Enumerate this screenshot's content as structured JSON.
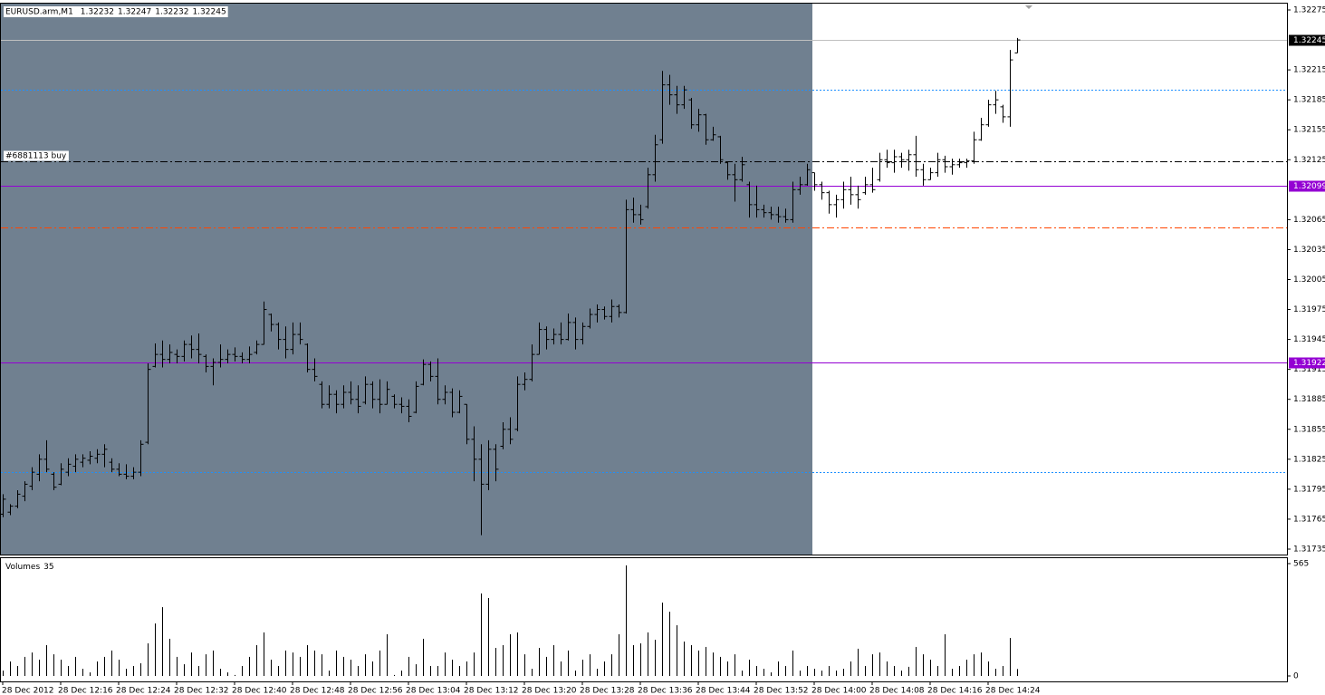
{
  "chart_data": [
    {
      "type": "ohlc",
      "title": "EURUSD.arm,M1",
      "categories": [
        "28 Dec 2012",
        null,
        null,
        null,
        null,
        null,
        null,
        null,
        "28 Dec 12:16",
        null,
        null,
        null,
        null,
        null,
        null,
        null,
        "28 Dec 12:24",
        null,
        null,
        null,
        null,
        null,
        null,
        null,
        "28 Dec 12:32",
        null,
        null,
        null,
        null,
        null,
        null,
        null,
        "28 Dec 12:40",
        null,
        null,
        null,
        null,
        null,
        null,
        null,
        "28 Dec 12:48",
        null,
        null,
        null,
        null,
        null,
        null,
        null,
        "28 Dec 12:56",
        null,
        null,
        null,
        null,
        null,
        null,
        null,
        "28 Dec 13:04",
        null,
        null,
        null,
        null,
        null,
        null,
        null,
        "28 Dec 13:12",
        null,
        null,
        null,
        null,
        null,
        null,
        null,
        "28 Dec 13:20",
        null,
        null,
        null,
        null,
        null,
        null,
        null,
        "28 Dec 13:28",
        null,
        null,
        null,
        null,
        null,
        null,
        null,
        "28 Dec 13:36",
        null,
        null,
        null,
        null,
        null,
        null,
        null,
        "28 Dec 13:44",
        null,
        null,
        null,
        null,
        null,
        null,
        null,
        "28 Dec 13:52",
        null,
        null,
        null,
        null,
        null,
        null,
        null,
        "28 Dec 14:00",
        null,
        null,
        null,
        null,
        null,
        null,
        null,
        "28 Dec 14:08",
        null,
        null,
        null,
        null,
        null,
        null,
        null,
        "28 Dec 14:16",
        null,
        null,
        null,
        null,
        null,
        null,
        null,
        "28 Dec 14:24",
        null,
        null,
        null,
        null
      ],
      "open": [
        1.3177,
        1.31772,
        1.31778,
        1.31788,
        1.31798,
        1.3181,
        1.31825,
        1.3181,
        1.318,
        1.31812,
        1.31818,
        1.31822,
        1.31824,
        1.31826,
        1.3183,
        1.31822,
        1.31815,
        1.3181,
        1.31808,
        1.31812,
        1.31842,
        1.31918,
        1.3193,
        1.31925,
        1.3193,
        1.31928,
        1.3194,
        1.31935,
        1.31928,
        1.31918,
        1.31922,
        1.31925,
        1.3193,
        1.31928,
        1.31925,
        1.31932,
        1.3194,
        1.3197,
        1.3196,
        1.31945,
        1.31935,
        1.3195,
        1.3194,
        1.31915,
        1.319,
        1.3188,
        1.3189,
        1.3188,
        1.31892,
        1.31885,
        1.31882,
        1.319,
        1.31885,
        1.3188,
        1.31888,
        1.3188,
        1.31878,
        1.31872,
        1.319,
        1.3192,
        1.31908,
        1.31885,
        1.31892,
        1.31872,
        1.3188,
        1.31845,
        1.31825,
        1.318,
        1.31835,
        1.31838,
        1.31855,
        1.31855,
        1.319,
        1.31905,
        1.3193,
        1.31955,
        1.31945,
        1.3195,
        1.31945,
        1.31962,
        1.31945,
        1.31958,
        1.3197,
        1.31975,
        1.31968,
        1.31978,
        1.31972,
        1.32075,
        1.3207,
        1.32078,
        1.3211,
        1.32145,
        1.322,
        1.3219,
        1.3218,
        1.32185,
        1.3216,
        1.3217,
        1.32145,
        1.32148,
        1.32122,
        1.3211,
        1.32105,
        1.321,
        1.3208,
        1.32075,
        1.32072,
        1.3207,
        1.32068,
        1.32065,
        1.32095,
        1.321,
        1.32112,
        1.321,
        1.32092,
        1.3208,
        1.32085,
        1.32095,
        1.3209,
        1.32092,
        1.321,
        1.32105,
        1.32125,
        1.32122,
        1.32128,
        1.32125,
        1.3213,
        1.32115,
        1.32105,
        1.32112,
        1.32125,
        1.32118,
        1.3212,
        1.32122,
        1.32124,
        1.32145,
        1.3216,
        1.3218,
        1.32178,
        1.32168,
        1.32232
      ],
      "high": [
        1.3179,
        1.3178,
        1.31794,
        1.31803,
        1.31817,
        1.3183,
        1.31844,
        1.31812,
        1.31821,
        1.31826,
        1.3183,
        1.3183,
        1.31833,
        1.31835,
        1.3184,
        1.31826,
        1.31821,
        1.3182,
        1.31817,
        1.31844,
        1.31921,
        1.31941,
        1.31944,
        1.3194,
        1.31935,
        1.31944,
        1.31949,
        1.31951,
        1.3193,
        1.31926,
        1.3194,
        1.31935,
        1.31937,
        1.31932,
        1.31938,
        1.31944,
        1.31983,
        1.31971,
        1.31962,
        1.31958,
        1.31962,
        1.31962,
        1.31941,
        1.31926,
        1.31903,
        1.31899,
        1.31894,
        1.31899,
        1.31903,
        1.31899,
        1.31908,
        1.31903,
        1.31905,
        1.31903,
        1.3189,
        1.31887,
        1.31885,
        1.31903,
        1.31925,
        1.31923,
        1.31926,
        1.31899,
        1.31896,
        1.31894,
        1.3188,
        1.31858,
        1.3184,
        1.31844,
        1.3184,
        1.31862,
        1.31867,
        1.31908,
        1.31912,
        1.3194,
        1.31962,
        1.31958,
        1.31956,
        1.31962,
        1.31971,
        1.31967,
        1.31962,
        1.31976,
        1.3198,
        1.31978,
        1.31985,
        1.3198,
        1.32085,
        1.32087,
        1.3208,
        1.32117,
        1.3215,
        1.32214,
        1.3221,
        1.32199,
        1.32199,
        1.32187,
        1.32176,
        1.32171,
        1.32158,
        1.32149,
        1.32123,
        1.32121,
        1.32128,
        1.32103,
        1.32099,
        1.3208,
        1.32078,
        1.32078,
        1.32076,
        1.32103,
        1.32108,
        1.32121,
        1.32112,
        1.32103,
        1.32094,
        1.3209,
        1.32103,
        1.32108,
        1.32099,
        1.32108,
        1.32117,
        1.32132,
        1.32135,
        1.32135,
        1.32132,
        1.32135,
        1.32149,
        1.32121,
        1.32117,
        1.32132,
        1.32129,
        1.32126,
        1.32126,
        1.32126,
        1.32153,
        1.32167,
        1.32185,
        1.32194,
        1.3218,
        1.32235,
        1.32247
      ],
      "low": [
        1.31767,
        1.31769,
        1.31776,
        1.31783,
        1.31794,
        1.31803,
        1.31812,
        1.31794,
        1.31799,
        1.31808,
        1.31812,
        1.31817,
        1.3182,
        1.31821,
        1.31817,
        1.31812,
        1.31808,
        1.31805,
        1.31805,
        1.31808,
        1.3184,
        1.31917,
        1.31917,
        1.31921,
        1.31921,
        1.31923,
        1.31926,
        1.31921,
        1.31912,
        1.31899,
        1.31917,
        1.31921,
        1.31923,
        1.31921,
        1.31921,
        1.3193,
        1.3194,
        1.31953,
        1.31935,
        1.31926,
        1.3193,
        1.3194,
        1.31912,
        1.31903,
        1.31876,
        1.31876,
        1.31871,
        1.31876,
        1.3188,
        1.31871,
        1.3188,
        1.31876,
        1.31871,
        1.3188,
        1.31876,
        1.31871,
        1.31862,
        1.31871,
        1.31899,
        1.31903,
        1.3188,
        1.3188,
        1.31867,
        1.31871,
        1.3184,
        1.31803,
        1.31749,
        1.31794,
        1.31803,
        1.31835,
        1.3184,
        1.31853,
        1.31894,
        1.31903,
        1.3193,
        1.31935,
        1.3194,
        1.3194,
        1.31944,
        1.31935,
        1.3194,
        1.31956,
        1.31962,
        1.31965,
        1.31962,
        1.31967,
        1.31971,
        1.32062,
        1.3206,
        1.32076,
        1.32103,
        1.32141,
        1.3218,
        1.32171,
        1.32176,
        1.32156,
        1.32153,
        1.3214,
        1.32144,
        1.32121,
        1.32105,
        1.32083,
        1.32103,
        1.32067,
        1.32067,
        1.32067,
        1.32065,
        1.32062,
        1.32062,
        1.32062,
        1.3209,
        1.32099,
        1.32094,
        1.32085,
        1.32071,
        1.32067,
        1.32076,
        1.3208,
        1.32076,
        1.3209,
        1.32092,
        1.32103,
        1.32117,
        1.32112,
        1.32117,
        1.32114,
        1.32108,
        1.32099,
        1.32105,
        1.32108,
        1.32112,
        1.3211,
        1.32117,
        1.32117,
        1.32121,
        1.32144,
        1.32158,
        1.32171,
        1.32162,
        1.32158,
        1.32232
      ],
      "close": [
        1.31785,
        1.31778,
        1.3179,
        1.318,
        1.31812,
        1.31825,
        1.31815,
        1.31797,
        1.31815,
        1.3182,
        1.31825,
        1.31826,
        1.31828,
        1.3183,
        1.31835,
        1.31815,
        1.3181,
        1.31808,
        1.31812,
        1.3184,
        1.31915,
        1.3193,
        1.31925,
        1.31932,
        1.31928,
        1.3194,
        1.31935,
        1.3193,
        1.31918,
        1.31922,
        1.31925,
        1.3193,
        1.31928,
        1.31925,
        1.3193,
        1.3194,
        1.31975,
        1.3196,
        1.31945,
        1.31935,
        1.3195,
        1.31945,
        1.31915,
        1.31908,
        1.3188,
        1.3189,
        1.3188,
        1.31892,
        1.31885,
        1.31878,
        1.319,
        1.31885,
        1.3188,
        1.31895,
        1.3188,
        1.31878,
        1.31868,
        1.31898,
        1.3192,
        1.31908,
        1.31885,
        1.31892,
        1.31872,
        1.31888,
        1.31845,
        1.31825,
        1.318,
        1.31835,
        1.31815,
        1.31855,
        1.31845,
        1.319,
        1.31905,
        1.3193,
        1.31955,
        1.31945,
        1.3195,
        1.31945,
        1.31962,
        1.31945,
        1.31958,
        1.3197,
        1.31975,
        1.31968,
        1.31978,
        1.31972,
        1.32075,
        1.3207,
        1.32065,
        1.3211,
        1.3214,
        1.322,
        1.3219,
        1.3218,
        1.32195,
        1.3216,
        1.3217,
        1.32145,
        1.3215,
        1.32125,
        1.3211,
        1.32105,
        1.3212,
        1.3208,
        1.32075,
        1.32072,
        1.3207,
        1.32068,
        1.32065,
        1.32095,
        1.321,
        1.32115,
        1.321,
        1.32092,
        1.3208,
        1.32085,
        1.32095,
        1.3209,
        1.32085,
        1.321,
        1.32095,
        1.32125,
        1.32122,
        1.32128,
        1.32125,
        1.3213,
        1.32115,
        1.32105,
        1.32112,
        1.32125,
        1.32118,
        1.3212,
        1.32122,
        1.32124,
        1.32145,
        1.3216,
        1.3218,
        1.32185,
        1.32168,
        1.32225,
        1.32245
      ],
      "color": "#000000",
      "bid_color": "#c0c0c0",
      "ylim": [
        1.3173,
        1.3228
      ],
      "yticks": [
        1.32275,
        1.32215,
        1.32185,
        1.32155,
        1.32125,
        1.32065,
        1.32035,
        1.32005,
        1.31975,
        1.31945,
        1.31915,
        1.31885,
        1.31855,
        1.31825,
        1.31795,
        1.31765,
        1.31735
      ],
      "levels": [
        {
          "value": 1.32195,
          "color": "#1e90ff",
          "style": "dotted"
        },
        {
          "value": 1.31812,
          "color": "#1e90ff",
          "style": "dotted"
        },
        {
          "value": 1.32123,
          "color": "#000000",
          "style": "dashdot",
          "label": "#6881113 buy"
        },
        {
          "value": 1.32099,
          "color": "#9400d3",
          "style": "solid",
          "tag": true
        },
        {
          "value": 1.31922,
          "color": "#9400d3",
          "style": "solid",
          "tag": true
        },
        {
          "value": 1.32057,
          "color": "#ff4500",
          "style": "dashdot"
        }
      ]
    },
    {
      "type": "bar",
      "title": "Volumes",
      "values": [
        27,
        73,
        50,
        96,
        118,
        82,
        155,
        109,
        82,
        50,
        96,
        36,
        18,
        73,
        96,
        128,
        82,
        36,
        50,
        64,
        164,
        264,
        346,
        187,
        96,
        59,
        118,
        50,
        109,
        128,
        36,
        18,
        5,
        50,
        96,
        155,
        219,
        82,
        50,
        128,
        118,
        96,
        155,
        128,
        109,
        27,
        128,
        96,
        82,
        50,
        109,
        73,
        128,
        210,
        5,
        27,
        96,
        59,
        187,
        50,
        50,
        118,
        82,
        50,
        73,
        118,
        415,
        392,
        141,
        155,
        210,
        219,
        109,
        36,
        141,
        96,
        155,
        73,
        128,
        27,
        82,
        109,
        36,
        73,
        109,
        210,
        556,
        155,
        164,
        219,
        182,
        369,
        323,
        255,
        173,
        155,
        128,
        146,
        118,
        96,
        73,
        109,
        27,
        82,
        50,
        36,
        18,
        73,
        50,
        128,
        27,
        50,
        36,
        27,
        50,
        27,
        36,
        73,
        137,
        50,
        109,
        118,
        73,
        50,
        27,
        46,
        146,
        109,
        82,
        50,
        210,
        36,
        50,
        82,
        109,
        118,
        73,
        36,
        50,
        191,
        35
      ],
      "color": "#000000",
      "ylim": [
        0,
        565
      ],
      "yticks": [
        0,
        565
      ]
    }
  ]
}
